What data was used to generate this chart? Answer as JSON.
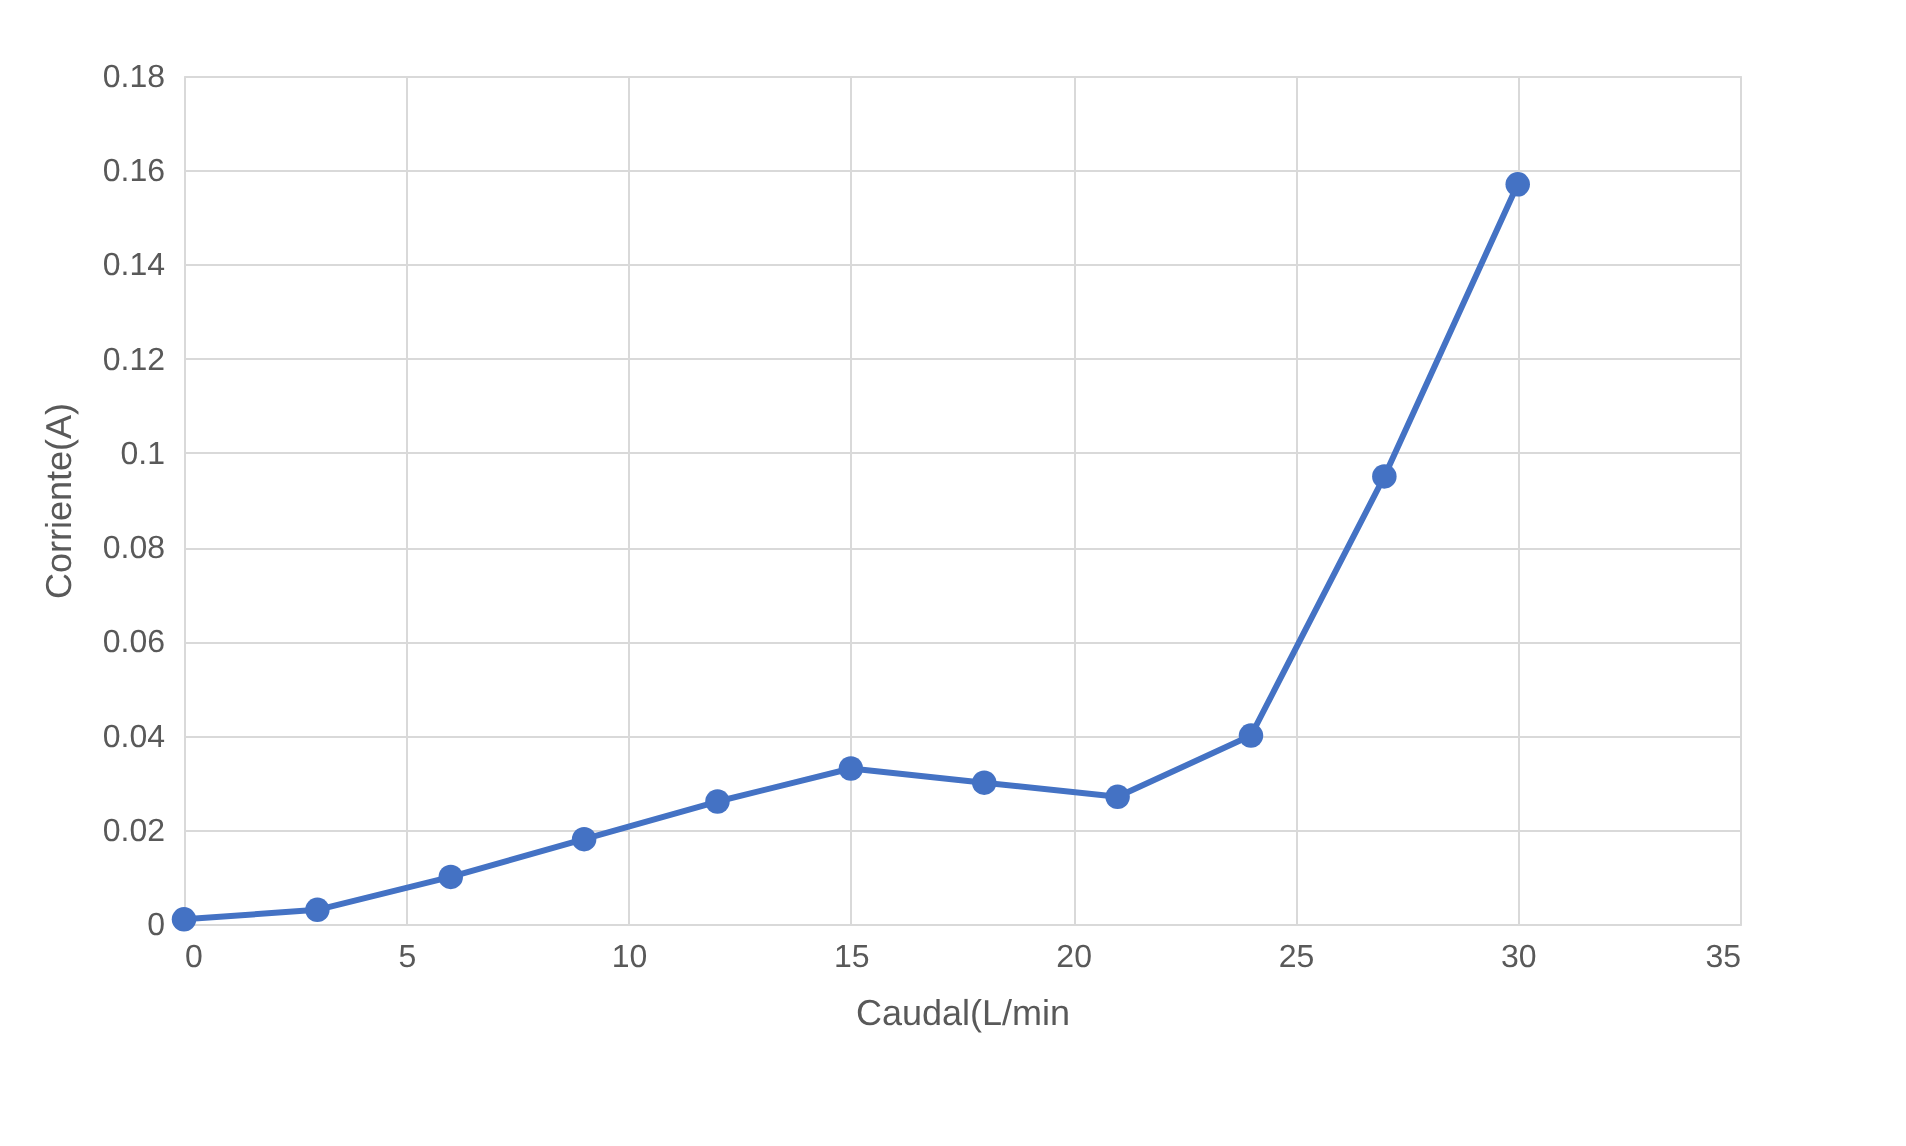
{
  "chart_data": {
    "type": "line",
    "xlabel": "Caudal(L/min",
    "ylabel": "Corriente(A)",
    "x": [
      0,
      3,
      6,
      9,
      12,
      15,
      18,
      21,
      24,
      27,
      30
    ],
    "series": [
      {
        "color": "#4472c4",
        "values": [
          0.001,
          0.003,
          0.01,
          0.018,
          0.026,
          0.033,
          0.03,
          0.027,
          0.04,
          0.095,
          0.157
        ]
      }
    ],
    "xlim": [
      0,
      35
    ],
    "xticks": [
      0,
      5,
      10,
      15,
      20,
      25,
      30,
      35
    ],
    "ylim": [
      0,
      0.18
    ],
    "yticks": [
      0,
      0.02,
      0.04,
      0.06,
      0.08,
      0.1,
      0.12,
      0.14,
      0.16,
      0.18
    ],
    "grid": true,
    "marker": "circle",
    "line_style": "solid"
  }
}
